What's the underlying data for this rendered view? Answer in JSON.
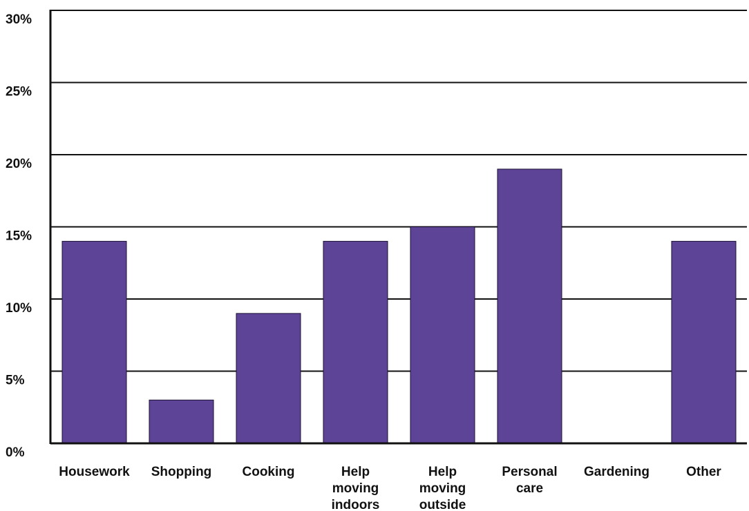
{
  "chart_data": {
    "type": "bar",
    "categories": [
      [
        "Housework"
      ],
      [
        "Shopping"
      ],
      [
        "Cooking"
      ],
      [
        "Help",
        "moving",
        "indoors"
      ],
      [
        "Help",
        "moving",
        "outside"
      ],
      [
        "Personal",
        "care"
      ],
      [
        "Gardening"
      ],
      [
        "Other"
      ]
    ],
    "values": [
      14,
      3,
      9,
      14,
      15,
      19,
      0,
      14
    ],
    "y_ticks": [
      "0%",
      "5%",
      "10%",
      "15%",
      "20%",
      "25%",
      "30%"
    ],
    "ylim": [
      0,
      30
    ],
    "grid": true,
    "legend": "none",
    "colors": {
      "bar": "#5e4497",
      "bar_edge": "#1a1030",
      "grid": "#111111",
      "axis": "#111111"
    }
  }
}
